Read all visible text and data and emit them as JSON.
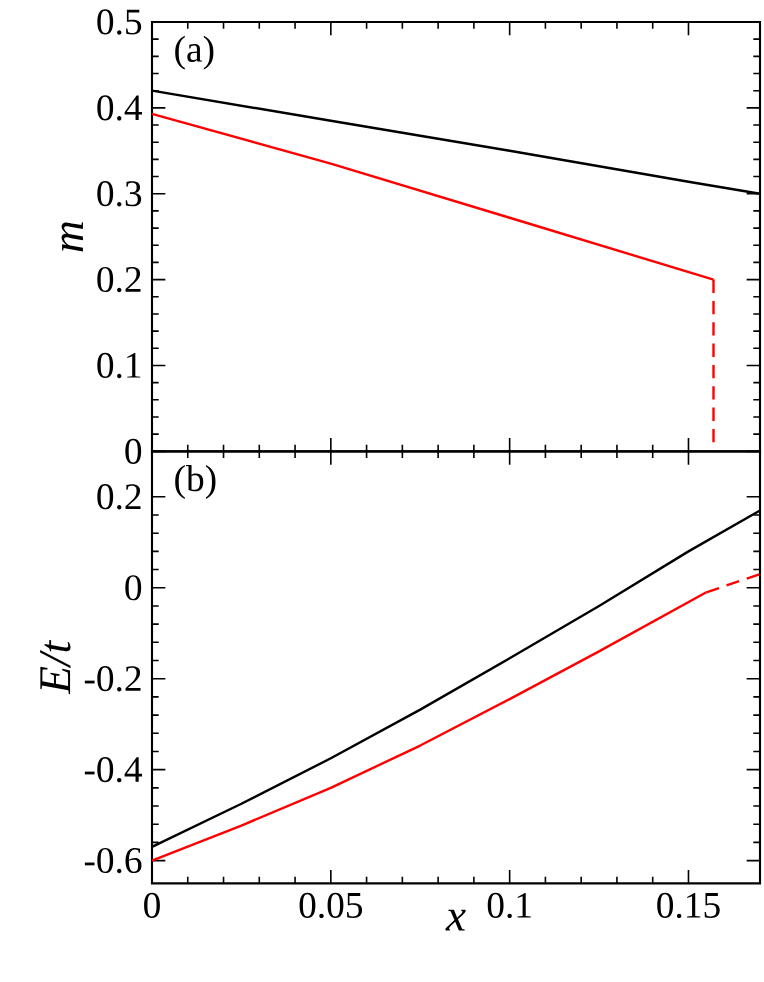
{
  "chart_data": [
    {
      "type": "line",
      "ylabel": "m",
      "annotations": [
        "(a)"
      ],
      "xlim": [
        0,
        0.17
      ],
      "ylim": [
        0,
        0.5
      ],
      "xticks": [
        0,
        0.05,
        0.1,
        0.15
      ],
      "yticks": [
        0,
        0.1,
        0.2,
        0.3,
        0.4,
        0.5
      ],
      "tick_labels": "y",
      "series": [
        {
          "color": "#000000",
          "line_style": "solid",
          "x": [
            0,
            0.05,
            0.1,
            0.15,
            0.17
          ],
          "values": [
            0.42,
            0.385,
            0.35,
            0.314,
            0.3
          ]
        },
        {
          "color": "#ff0000",
          "line_style": "solid",
          "x": [
            0,
            0.05,
            0.1,
            0.157
          ],
          "values": [
            0.393,
            0.335,
            0.272,
            0.2
          ]
        },
        {
          "color": "#ff0000",
          "line_style": "dashed",
          "x": [
            0.157,
            0.157
          ],
          "values": [
            0.2,
            0
          ]
        }
      ]
    },
    {
      "type": "line",
      "xlabel": "x",
      "ylabel": "E/t",
      "annotations": [
        "(b)"
      ],
      "xlim": [
        0,
        0.17
      ],
      "ylim": [
        -0.65,
        0.3
      ],
      "xticks": [
        0,
        0.05,
        0.1,
        0.15
      ],
      "yticks": [
        -0.6,
        -0.4,
        -0.2,
        0,
        0.2
      ],
      "series": [
        {
          "color": "#000000",
          "line_style": "solid",
          "x": [
            0,
            0.025,
            0.05,
            0.075,
            0.1,
            0.125,
            0.15,
            0.17
          ],
          "values": [
            -0.57,
            -0.475,
            -0.375,
            -0.268,
            -0.155,
            -0.04,
            0.08,
            0.17
          ]
        },
        {
          "color": "#ff0000",
          "line_style": "solid",
          "x": [
            0,
            0.025,
            0.05,
            0.075,
            0.1,
            0.125,
            0.155
          ],
          "values": [
            -0.6,
            -0.523,
            -0.44,
            -0.347,
            -0.245,
            -0.14,
            -0.01
          ]
        },
        {
          "color": "#ff0000",
          "line_style": "dashed",
          "x": [
            0.155,
            0.17
          ],
          "values": [
            -0.01,
            0.03
          ]
        }
      ]
    }
  ]
}
